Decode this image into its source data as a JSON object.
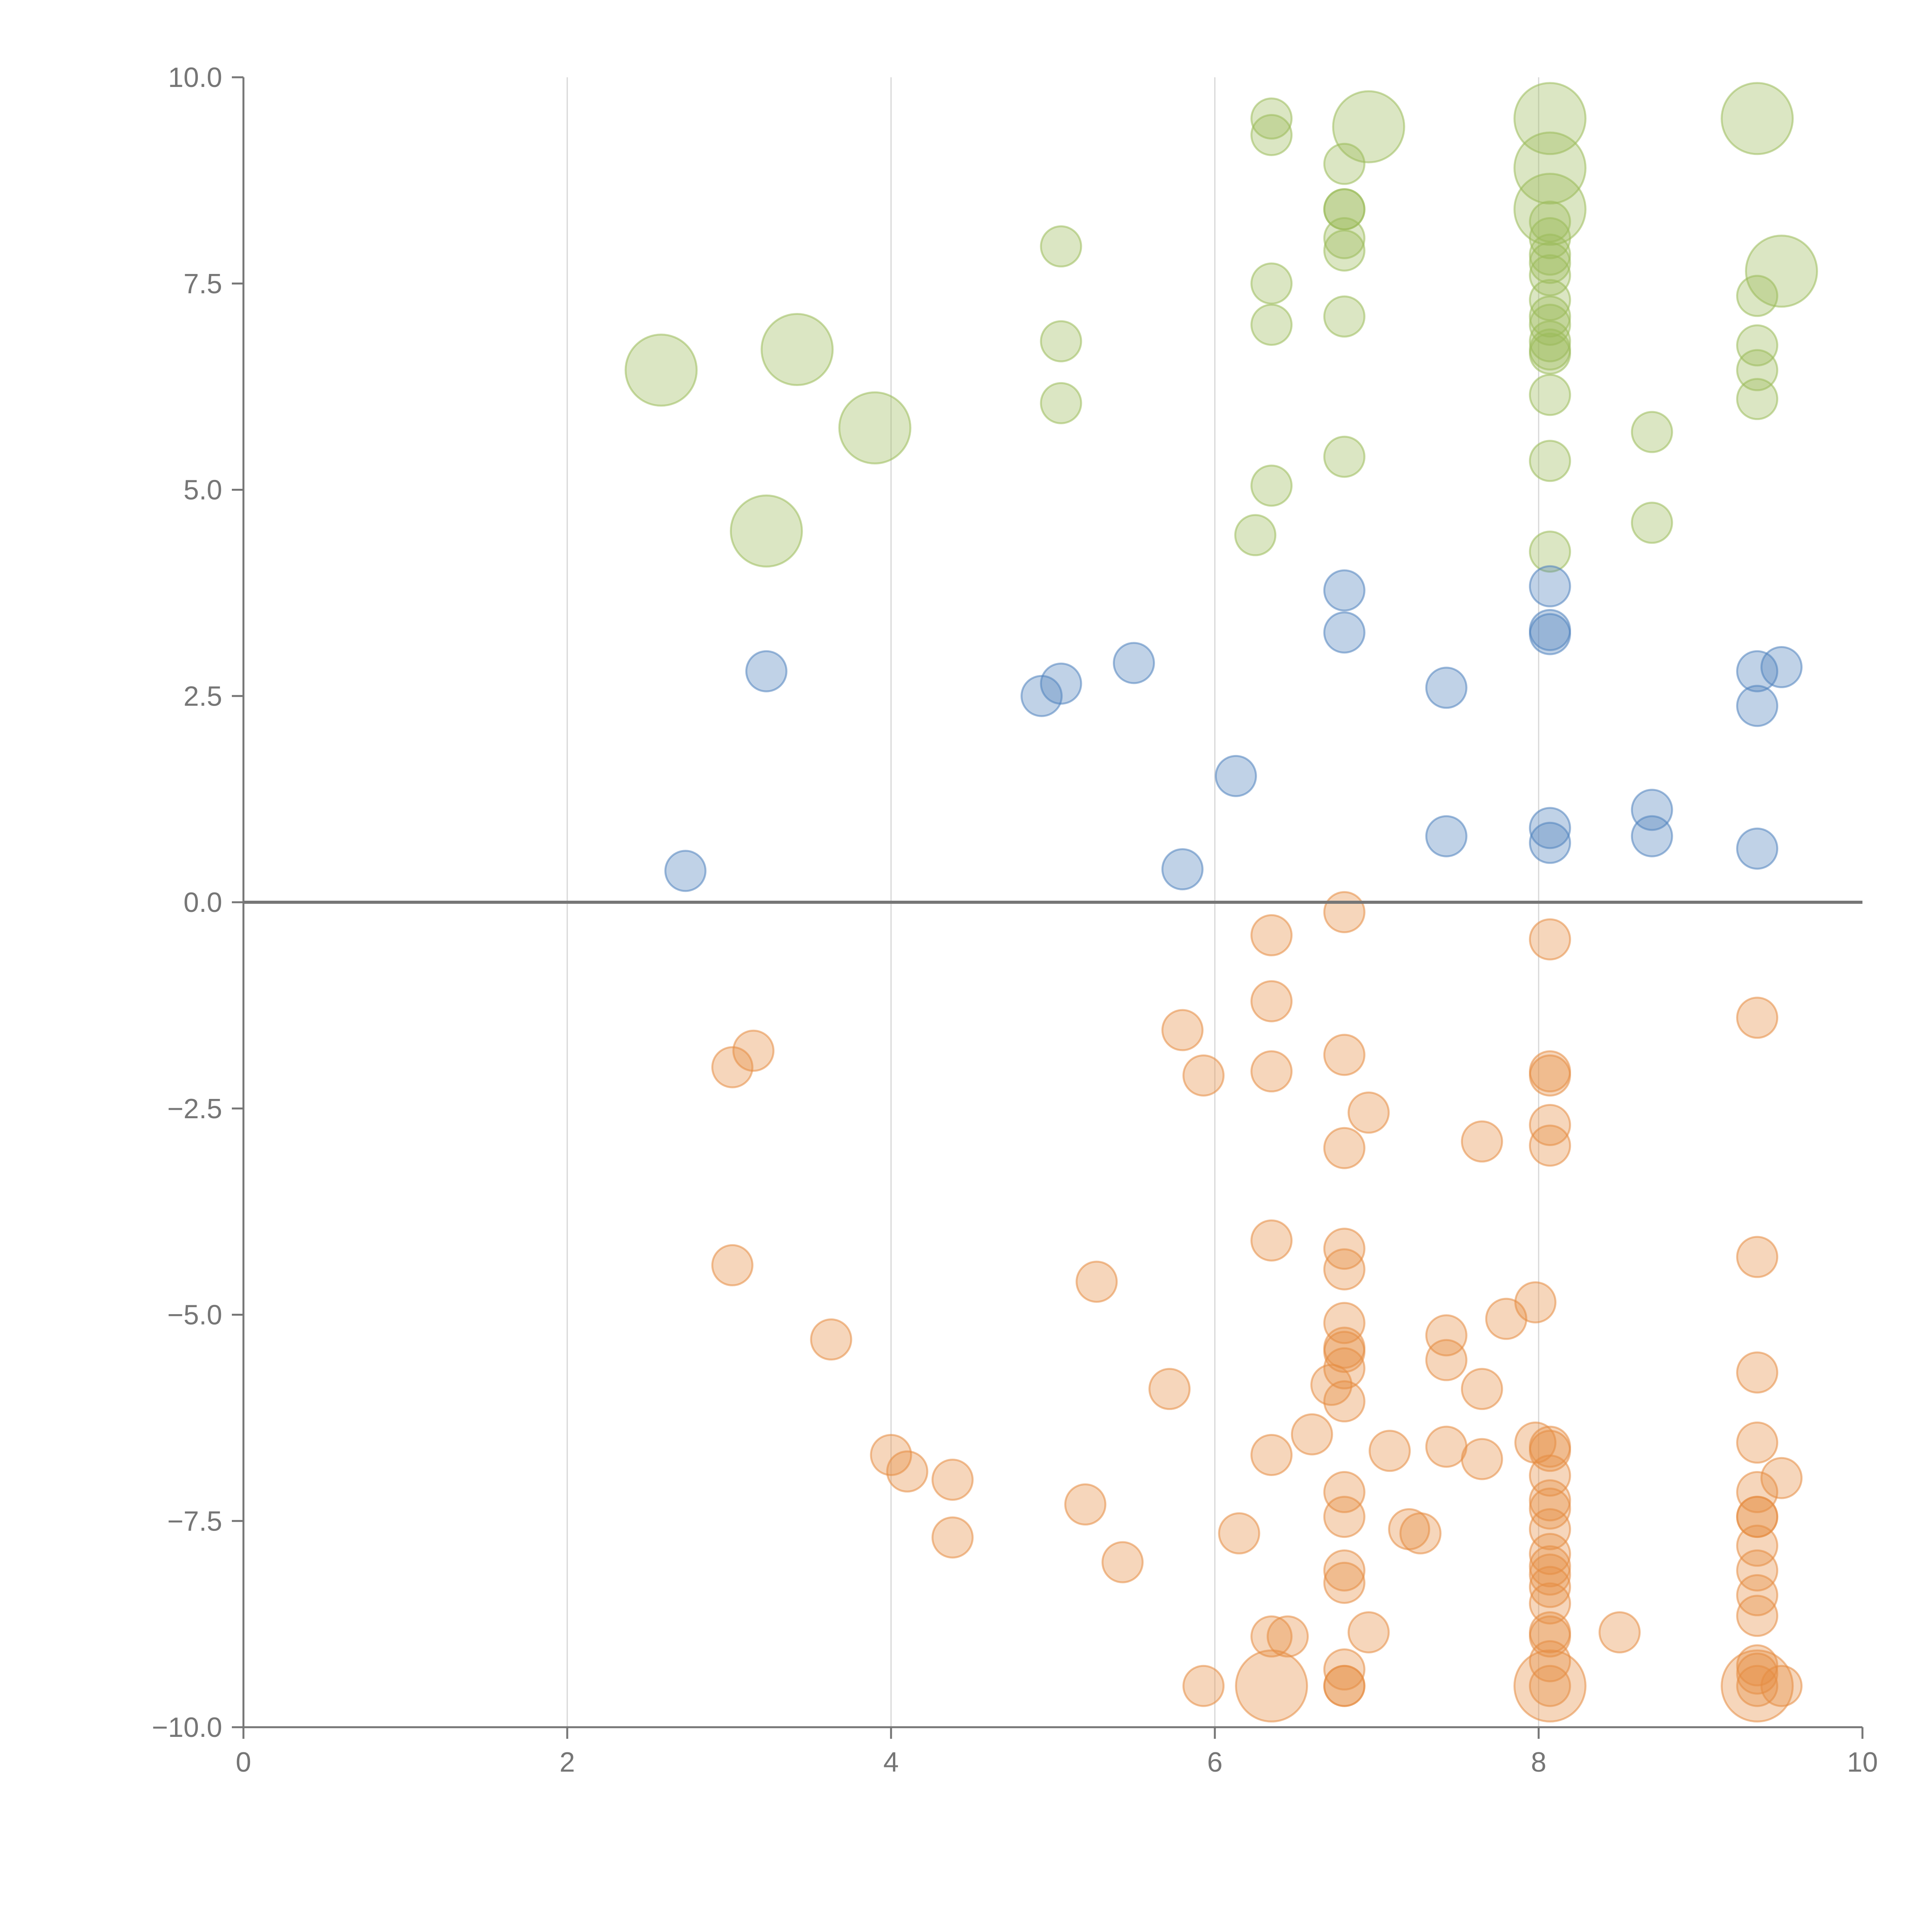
{
  "chart_data": {
    "type": "scatter",
    "title": "",
    "xlabel": "",
    "ylabel": "",
    "xlim": [
      0,
      10
    ],
    "ylim": [
      -10,
      10
    ],
    "x_ticks": [
      "0",
      "2",
      "4",
      "6",
      "8",
      "10"
    ],
    "y_ticks": [
      "−10.0",
      "−7.5",
      "−5.0",
      "−2.5",
      "0.0",
      "2.5",
      "5.0",
      "7.5",
      "10.0"
    ],
    "grid": "vertical lines only",
    "zero_line": true,
    "legend": "none",
    "marker_opacity": 0.4,
    "series": [
      {
        "color": "#9bbb59",
        "points": [
          {
            "x": 6.35,
            "y": 9.5,
            "r": 1
          },
          {
            "x": 6.35,
            "y": 9.3,
            "r": 1
          },
          {
            "x": 6.95,
            "y": 9.4,
            "r": 2
          },
          {
            "x": 6.8,
            "y": 8.95,
            "r": 1
          },
          {
            "x": 6.8,
            "y": 8.4,
            "r": 1
          },
          {
            "x": 6.8,
            "y": 8.4,
            "r": 1
          },
          {
            "x": 6.8,
            "y": 8.05,
            "r": 1
          },
          {
            "x": 6.8,
            "y": 7.9,
            "r": 1
          },
          {
            "x": 6.35,
            "y": 7.5,
            "r": 1
          },
          {
            "x": 6.35,
            "y": 7.0,
            "r": 1
          },
          {
            "x": 6.8,
            "y": 7.1,
            "r": 1
          },
          {
            "x": 6.8,
            "y": 5.4,
            "r": 1
          },
          {
            "x": 6.35,
            "y": 5.05,
            "r": 1
          },
          {
            "x": 6.25,
            "y": 4.45,
            "r": 1
          },
          {
            "x": 5.05,
            "y": 7.95,
            "r": 1
          },
          {
            "x": 5.05,
            "y": 6.8,
            "r": 1
          },
          {
            "x": 5.05,
            "y": 6.05,
            "r": 1
          },
          {
            "x": 2.58,
            "y": 6.45,
            "r": 2
          },
          {
            "x": 3.42,
            "y": 6.7,
            "r": 2
          },
          {
            "x": 3.9,
            "y": 5.75,
            "r": 2
          },
          {
            "x": 3.23,
            "y": 4.5,
            "r": 2
          },
          {
            "x": 8.07,
            "y": 9.5,
            "r": 2
          },
          {
            "x": 8.07,
            "y": 8.9,
            "r": 2
          },
          {
            "x": 8.07,
            "y": 8.4,
            "r": 2
          },
          {
            "x": 8.07,
            "y": 8.25,
            "r": 1
          },
          {
            "x": 8.07,
            "y": 8.05,
            "r": 1
          },
          {
            "x": 8.07,
            "y": 7.85,
            "r": 1
          },
          {
            "x": 8.07,
            "y": 7.75,
            "r": 1
          },
          {
            "x": 8.07,
            "y": 7.6,
            "r": 1
          },
          {
            "x": 8.07,
            "y": 7.3,
            "r": 1
          },
          {
            "x": 8.07,
            "y": 7.1,
            "r": 1
          },
          {
            "x": 8.07,
            "y": 7.0,
            "r": 1
          },
          {
            "x": 8.07,
            "y": 6.8,
            "r": 1
          },
          {
            "x": 8.07,
            "y": 6.7,
            "r": 1
          },
          {
            "x": 8.07,
            "y": 6.65,
            "r": 1
          },
          {
            "x": 8.07,
            "y": 6.15,
            "r": 1
          },
          {
            "x": 8.07,
            "y": 5.35,
            "r": 1
          },
          {
            "x": 8.07,
            "y": 4.25,
            "r": 1
          },
          {
            "x": 8.7,
            "y": 5.7,
            "r": 1
          },
          {
            "x": 8.7,
            "y": 4.6,
            "r": 1
          },
          {
            "x": 9.35,
            "y": 9.5,
            "r": 2
          },
          {
            "x": 9.5,
            "y": 7.65,
            "r": 2
          },
          {
            "x": 9.35,
            "y": 7.35,
            "r": 1
          },
          {
            "x": 9.35,
            "y": 6.75,
            "r": 1
          },
          {
            "x": 9.35,
            "y": 6.45,
            "r": 1
          },
          {
            "x": 9.35,
            "y": 6.1,
            "r": 1
          }
        ]
      },
      {
        "color": "#4f81bd",
        "points": [
          {
            "x": 3.23,
            "y": 2.8,
            "r": 1
          },
          {
            "x": 2.73,
            "y": 0.38,
            "r": 1
          },
          {
            "x": 4.93,
            "y": 2.5,
            "r": 1
          },
          {
            "x": 5.05,
            "y": 2.65,
            "r": 1
          },
          {
            "x": 5.5,
            "y": 2.9,
            "r": 1
          },
          {
            "x": 5.8,
            "y": 0.4,
            "r": 1
          },
          {
            "x": 6.13,
            "y": 1.53,
            "r": 1
          },
          {
            "x": 6.8,
            "y": 3.78,
            "r": 1
          },
          {
            "x": 6.8,
            "y": 3.27,
            "r": 1
          },
          {
            "x": 7.43,
            "y": 2.6,
            "r": 1
          },
          {
            "x": 7.43,
            "y": 0.8,
            "r": 1
          },
          {
            "x": 8.07,
            "y": 3.83,
            "r": 1
          },
          {
            "x": 8.07,
            "y": 3.3,
            "r": 1
          },
          {
            "x": 8.07,
            "y": 3.25,
            "r": 1
          },
          {
            "x": 8.07,
            "y": 0.9,
            "r": 1
          },
          {
            "x": 8.07,
            "y": 0.72,
            "r": 1
          },
          {
            "x": 8.7,
            "y": 1.12,
            "r": 1
          },
          {
            "x": 8.7,
            "y": 0.8,
            "r": 1
          },
          {
            "x": 9.35,
            "y": 2.8,
            "r": 1
          },
          {
            "x": 9.5,
            "y": 2.85,
            "r": 1
          },
          {
            "x": 9.35,
            "y": 2.38,
            "r": 1
          },
          {
            "x": 9.35,
            "y": 0.65,
            "r": 1
          }
        ]
      },
      {
        "color": "#e68c42",
        "points": [
          {
            "x": 3.15,
            "y": -1.8,
            "r": 1
          },
          {
            "x": 3.02,
            "y": -2.0,
            "r": 1
          },
          {
            "x": 3.02,
            "y": -4.4,
            "r": 1
          },
          {
            "x": 3.63,
            "y": -5.3,
            "r": 1
          },
          {
            "x": 4.0,
            "y": -6.7,
            "r": 1
          },
          {
            "x": 4.1,
            "y": -6.9,
            "r": 1
          },
          {
            "x": 4.38,
            "y": -7.0,
            "r": 1
          },
          {
            "x": 4.38,
            "y": -7.7,
            "r": 1
          },
          {
            "x": 5.2,
            "y": -7.3,
            "r": 1
          },
          {
            "x": 5.27,
            "y": -4.6,
            "r": 1
          },
          {
            "x": 5.43,
            "y": -8.0,
            "r": 1
          },
          {
            "x": 5.72,
            "y": -5.9,
            "r": 1
          },
          {
            "x": 5.8,
            "y": -1.55,
            "r": 1
          },
          {
            "x": 5.93,
            "y": -2.1,
            "r": 1
          },
          {
            "x": 5.93,
            "y": -9.5,
            "r": 1
          },
          {
            "x": 6.15,
            "y": -7.65,
            "r": 1
          },
          {
            "x": 6.35,
            "y": -0.4,
            "r": 1
          },
          {
            "x": 6.35,
            "y": -1.2,
            "r": 1
          },
          {
            "x": 6.35,
            "y": -2.05,
            "r": 1
          },
          {
            "x": 6.35,
            "y": -4.1,
            "r": 1
          },
          {
            "x": 6.35,
            "y": -6.7,
            "r": 1
          },
          {
            "x": 6.35,
            "y": -8.9,
            "r": 1
          },
          {
            "x": 6.45,
            "y": -8.9,
            "r": 1
          },
          {
            "x": 6.35,
            "y": -9.5,
            "r": 2
          },
          {
            "x": 6.6,
            "y": -6.45,
            "r": 1
          },
          {
            "x": 6.72,
            "y": -5.85,
            "r": 1
          },
          {
            "x": 6.8,
            "y": -0.12,
            "r": 1
          },
          {
            "x": 6.8,
            "y": -1.85,
            "r": 1
          },
          {
            "x": 6.8,
            "y": -2.98,
            "r": 1
          },
          {
            "x": 6.8,
            "y": -4.2,
            "r": 1
          },
          {
            "x": 6.8,
            "y": -4.45,
            "r": 1
          },
          {
            "x": 6.8,
            "y": -5.1,
            "r": 1
          },
          {
            "x": 6.8,
            "y": -5.4,
            "r": 1
          },
          {
            "x": 6.8,
            "y": -5.45,
            "r": 1
          },
          {
            "x": 6.8,
            "y": -5.65,
            "r": 1
          },
          {
            "x": 6.8,
            "y": -6.05,
            "r": 1
          },
          {
            "x": 6.8,
            "y": -7.15,
            "r": 1
          },
          {
            "x": 6.8,
            "y": -7.45,
            "r": 1
          },
          {
            "x": 6.8,
            "y": -8.1,
            "r": 1
          },
          {
            "x": 6.8,
            "y": -8.25,
            "r": 1
          },
          {
            "x": 6.8,
            "y": -9.3,
            "r": 1
          },
          {
            "x": 6.8,
            "y": -9.5,
            "r": 1
          },
          {
            "x": 6.8,
            "y": -9.5,
            "r": 1
          },
          {
            "x": 6.95,
            "y": -2.55,
            "r": 1
          },
          {
            "x": 6.95,
            "y": -8.85,
            "r": 1
          },
          {
            "x": 7.08,
            "y": -6.65,
            "r": 1
          },
          {
            "x": 7.2,
            "y": -7.6,
            "r": 1
          },
          {
            "x": 7.27,
            "y": -7.65,
            "r": 1
          },
          {
            "x": 7.43,
            "y": -5.25,
            "r": 1
          },
          {
            "x": 7.43,
            "y": -5.55,
            "r": 1
          },
          {
            "x": 7.43,
            "y": -6.6,
            "r": 1
          },
          {
            "x": 7.65,
            "y": -2.9,
            "r": 1
          },
          {
            "x": 7.65,
            "y": -5.9,
            "r": 1
          },
          {
            "x": 7.65,
            "y": -6.75,
            "r": 1
          },
          {
            "x": 7.8,
            "y": -5.05,
            "r": 1
          },
          {
            "x": 7.98,
            "y": -4.85,
            "r": 1
          },
          {
            "x": 7.98,
            "y": -6.55,
            "r": 1
          },
          {
            "x": 8.07,
            "y": -0.45,
            "r": 1
          },
          {
            "x": 8.07,
            "y": -2.05,
            "r": 1
          },
          {
            "x": 8.07,
            "y": -2.1,
            "r": 1
          },
          {
            "x": 8.07,
            "y": -2.7,
            "r": 1
          },
          {
            "x": 8.07,
            "y": -2.95,
            "r": 1
          },
          {
            "x": 8.07,
            "y": -6.6,
            "r": 1
          },
          {
            "x": 8.07,
            "y": -6.65,
            "r": 1
          },
          {
            "x": 8.07,
            "y": -6.95,
            "r": 1
          },
          {
            "x": 8.07,
            "y": -7.25,
            "r": 1
          },
          {
            "x": 8.07,
            "y": -7.35,
            "r": 1
          },
          {
            "x": 8.07,
            "y": -7.6,
            "r": 1
          },
          {
            "x": 8.07,
            "y": -7.9,
            "r": 1
          },
          {
            "x": 8.07,
            "y": -8.05,
            "r": 1
          },
          {
            "x": 8.07,
            "y": -8.15,
            "r": 1
          },
          {
            "x": 8.07,
            "y": -8.3,
            "r": 1
          },
          {
            "x": 8.07,
            "y": -8.5,
            "r": 1
          },
          {
            "x": 8.07,
            "y": -8.85,
            "r": 1
          },
          {
            "x": 8.07,
            "y": -8.9,
            "r": 1
          },
          {
            "x": 8.07,
            "y": -9.2,
            "r": 1
          },
          {
            "x": 8.07,
            "y": -9.5,
            "r": 2
          },
          {
            "x": 8.07,
            "y": -9.5,
            "r": 1
          },
          {
            "x": 8.5,
            "y": -8.85,
            "r": 1
          },
          {
            "x": 9.35,
            "y": -1.4,
            "r": 1
          },
          {
            "x": 9.35,
            "y": -4.3,
            "r": 1
          },
          {
            "x": 9.35,
            "y": -5.7,
            "r": 1
          },
          {
            "x": 9.35,
            "y": -6.55,
            "r": 1
          },
          {
            "x": 9.35,
            "y": -7.15,
            "r": 1
          },
          {
            "x": 9.35,
            "y": -7.45,
            "r": 1
          },
          {
            "x": 9.35,
            "y": -7.45,
            "r": 1
          },
          {
            "x": 9.35,
            "y": -7.8,
            "r": 1
          },
          {
            "x": 9.35,
            "y": -8.1,
            "r": 1
          },
          {
            "x": 9.35,
            "y": -8.4,
            "r": 1
          },
          {
            "x": 9.35,
            "y": -8.65,
            "r": 1
          },
          {
            "x": 9.35,
            "y": -9.25,
            "r": 1
          },
          {
            "x": 9.35,
            "y": -9.35,
            "r": 1
          },
          {
            "x": 9.35,
            "y": -9.5,
            "r": 2
          },
          {
            "x": 9.35,
            "y": -9.5,
            "r": 1
          },
          {
            "x": 9.5,
            "y": -6.98,
            "r": 1
          },
          {
            "x": 9.5,
            "y": -9.5,
            "r": 1
          }
        ]
      }
    ]
  }
}
